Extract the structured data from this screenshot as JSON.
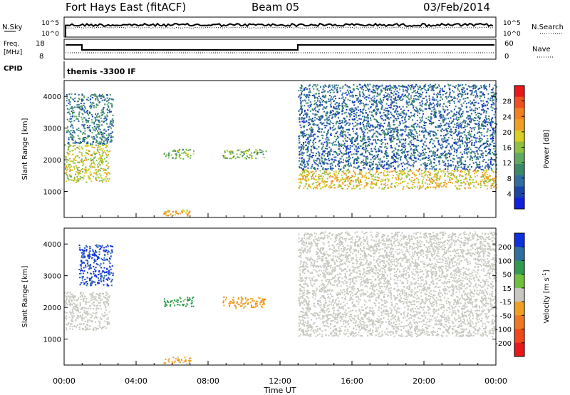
{
  "header": {
    "station": "Fort Hays East (fitACF)",
    "beam": "Beam 05",
    "date": "03/Feb/2014"
  },
  "panels": {
    "noise": {
      "label_left": "N.Sky",
      "label_right": "N.Search",
      "ticks": [
        "10^5",
        "10^0"
      ]
    },
    "freq": {
      "label_left_1": "Freq.",
      "label_left_2": "[MHz]",
      "label_right": "Nave",
      "ticks_left": [
        "18",
        "8"
      ],
      "ticks_right": [
        "60",
        "0"
      ]
    },
    "cpid": {
      "label": "CPID",
      "text": "themis -3300 IF"
    }
  },
  "chart_data": [
    {
      "type": "heatmap",
      "title": "",
      "xlabel": "Time UT",
      "ylabel": "Slant Range [km]",
      "xlim": [
        "00:00",
        "24:00"
      ],
      "ylim": [
        180,
        4500
      ],
      "xticks": [
        "00:00",
        "04:00",
        "08:00",
        "12:00",
        "16:00",
        "20:00",
        "00:00"
      ],
      "yticks": [
        1000,
        2000,
        3000,
        4000
      ],
      "colorbar": {
        "label": "Power [dB]",
        "ticks": [
          4,
          8,
          12,
          16,
          20,
          24,
          28
        ],
        "range": [
          0,
          32
        ],
        "colors": [
          "#1020e0",
          "#1a46a8",
          "#2f6fa0",
          "#3a8a6a",
          "#5faa60",
          "#90c040",
          "#d8d020",
          "#f0a020",
          "#f08020",
          "#f05020",
          "#e81818"
        ]
      },
      "regions": [
        {
          "t": [
            0.0,
            2.5
          ],
          "r": [
            1300,
            2500
          ],
          "value": 18
        },
        {
          "t": [
            0.1,
            2.7
          ],
          "r": [
            2500,
            4100
          ],
          "value": 8
        },
        {
          "t": [
            5.5,
            7.2
          ],
          "r": [
            2050,
            2350
          ],
          "value": 14
        },
        {
          "t": [
            8.8,
            11.2
          ],
          "r": [
            2050,
            2350
          ],
          "value": 14
        },
        {
          "t": [
            5.5,
            7.0
          ],
          "r": [
            250,
            450
          ],
          "value": 22
        },
        {
          "t": [
            13.0,
            24.0
          ],
          "r": [
            1100,
            1700
          ],
          "value": 20
        },
        {
          "t": [
            13.0,
            24.0
          ],
          "r": [
            1700,
            4400
          ],
          "value": 6
        }
      ]
    },
    {
      "type": "heatmap",
      "title": "",
      "xlabel": "Time UT",
      "ylabel": "Slant Range [km]",
      "xlim": [
        "00:00",
        "24:00"
      ],
      "ylim": [
        180,
        4500
      ],
      "xticks": [
        "00:00",
        "04:00",
        "08:00",
        "12:00",
        "16:00",
        "20:00",
        "00:00"
      ],
      "yticks": [
        1000,
        2000,
        3000,
        4000
      ],
      "colorbar": {
        "label": "Velocity [m s^-1]",
        "ticks": [
          200,
          100,
          50,
          15,
          -15,
          -50,
          -100,
          -200
        ],
        "range": [
          -250,
          250
        ],
        "colors": [
          "#1030e0",
          "#2f6fa0",
          "#2f9a50",
          "#70c040",
          "#c8c8c0",
          "#f0a020",
          "#f07820",
          "#f04818",
          "#e81818"
        ]
      },
      "regions": [
        {
          "t": [
            0.0,
            2.5
          ],
          "r": [
            1300,
            2500
          ],
          "value": 0
        },
        {
          "t": [
            0.8,
            2.7
          ],
          "r": [
            2700,
            4000
          ],
          "value": 230
        },
        {
          "t": [
            5.5,
            7.2
          ],
          "r": [
            2050,
            2350
          ],
          "value": 120
        },
        {
          "t": [
            8.8,
            11.2
          ],
          "r": [
            2000,
            2350
          ],
          "value": -70
        },
        {
          "t": [
            5.5,
            7.0
          ],
          "r": [
            250,
            450
          ],
          "value": -50
        },
        {
          "t": [
            13.0,
            24.0
          ],
          "r": [
            1100,
            1700
          ],
          "value": 0
        },
        {
          "t": [
            13.0,
            24.0
          ],
          "r": [
            1700,
            4400
          ],
          "value": 0
        }
      ]
    }
  ]
}
